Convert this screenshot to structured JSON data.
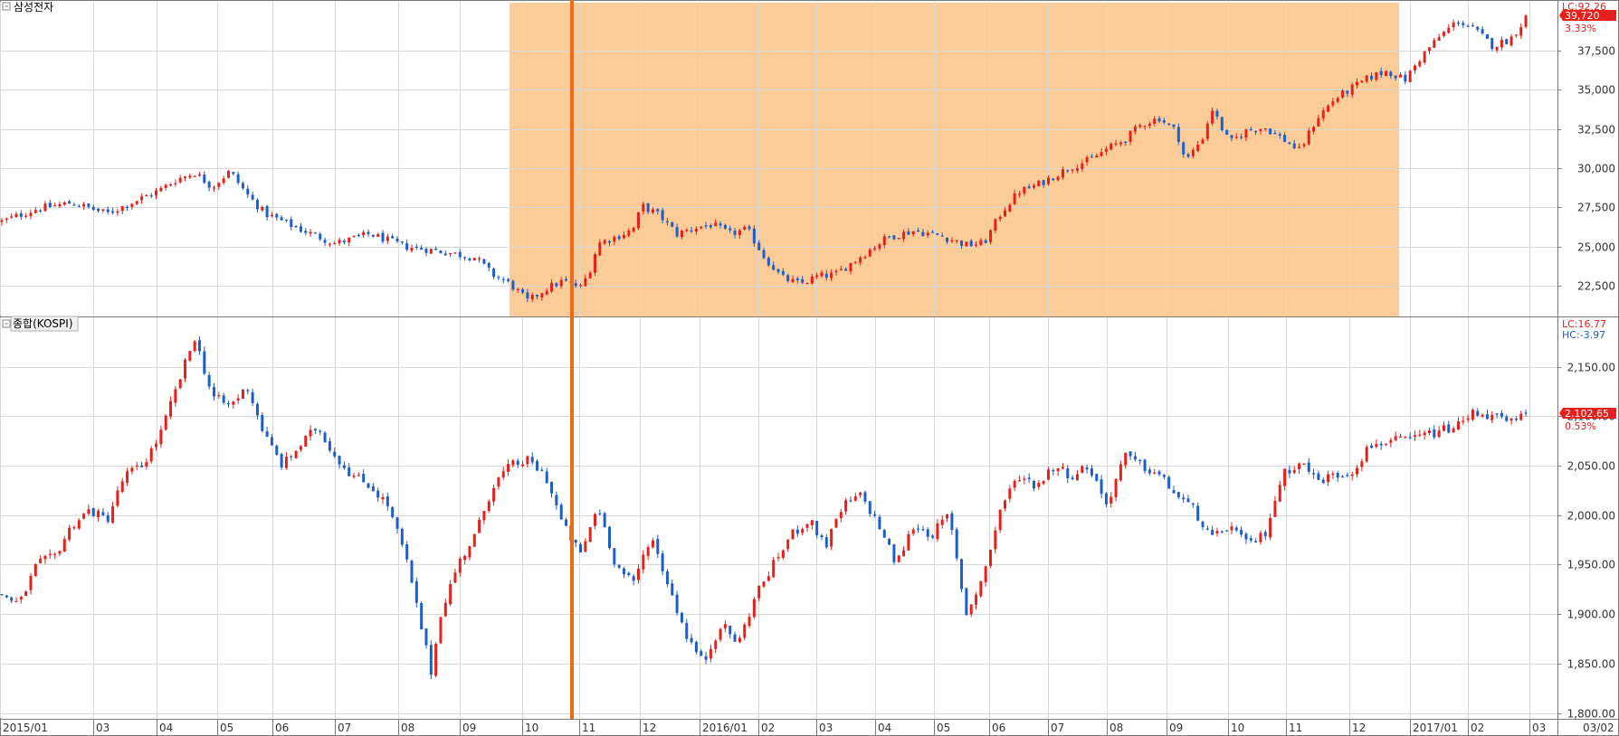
{
  "chart_data": [
    {
      "type": "candlestick",
      "title": "삼성전자",
      "indicator_label": "LC:92.26",
      "last_price_label": "39,720",
      "change_label": "3.33%",
      "y_ticks": [
        22500,
        25000,
        27500,
        30000,
        32500,
        35000,
        37500
      ],
      "y_tick_labels": [
        "22,500",
        "25,000",
        "27,500",
        "30,000",
        "32,500",
        "35,000",
        "37,500"
      ],
      "ylim": [
        20600,
        40600
      ],
      "last_value": 39720,
      "highlight_period": [
        "2015/11",
        "2016/12"
      ],
      "marker_date": "2015/10 end",
      "path_points": [
        [
          0,
          26600
        ],
        [
          4,
          27400
        ],
        [
          8,
          27800
        ],
        [
          12,
          27100
        ],
        [
          16,
          28100
        ],
        [
          18,
          28600
        ],
        [
          20,
          29300
        ],
        [
          22,
          29700
        ],
        [
          24,
          28800
        ],
        [
          26,
          29800
        ],
        [
          28,
          28300
        ],
        [
          30,
          27100
        ],
        [
          34,
          26100
        ],
        [
          38,
          25200
        ],
        [
          42,
          25800
        ],
        [
          46,
          25000
        ],
        [
          50,
          24700
        ],
        [
          54,
          24300
        ],
        [
          56,
          23200
        ],
        [
          58,
          22600
        ],
        [
          60,
          21500
        ],
        [
          62,
          22300
        ],
        [
          64,
          22800
        ],
        [
          66,
          22400
        ],
        [
          67,
          23400
        ],
        [
          68,
          25200
        ],
        [
          70,
          25600
        ],
        [
          72,
          26100
        ],
        [
          73,
          27600
        ],
        [
          75,
          27000
        ],
        [
          77,
          25800
        ],
        [
          79,
          26200
        ],
        [
          81,
          26400
        ],
        [
          83,
          25800
        ],
        [
          85,
          26100
        ],
        [
          87,
          24300
        ],
        [
          89,
          23000
        ],
        [
          91,
          22600
        ],
        [
          93,
          23100
        ],
        [
          95,
          23200
        ],
        [
          97,
          24000
        ],
        [
          99,
          24800
        ],
        [
          101,
          25600
        ],
        [
          104,
          26000
        ],
        [
          107,
          25700
        ],
        [
          110,
          25100
        ],
        [
          112,
          25200
        ],
        [
          114,
          27200
        ],
        [
          116,
          28500
        ],
        [
          118,
          28900
        ],
        [
          120,
          29500
        ],
        [
          122,
          30100
        ],
        [
          124,
          30500
        ],
        [
          126,
          31200
        ],
        [
          128,
          31800
        ],
        [
          130,
          32800
        ],
        [
          132,
          33200
        ],
        [
          134,
          32300
        ],
        [
          135,
          30400
        ],
        [
          137,
          32000
        ],
        [
          138,
          33800
        ],
        [
          140,
          31600
        ],
        [
          142,
          32400
        ],
        [
          144,
          32600
        ],
        [
          146,
          31900
        ],
        [
          148,
          31100
        ],
        [
          150,
          33200
        ],
        [
          152,
          34400
        ],
        [
          154,
          35100
        ],
        [
          156,
          35800
        ],
        [
          158,
          36200
        ],
        [
          160,
          35600
        ],
        [
          162,
          37200
        ],
        [
          164,
          38400
        ],
        [
          166,
          39400
        ],
        [
          168,
          38800
        ],
        [
          170,
          37800
        ],
        [
          172,
          38200
        ],
        [
          174,
          39720
        ]
      ]
    },
    {
      "type": "candlestick",
      "title": "종합(KOSPI)",
      "indicator_label_1": "LC:16.77",
      "indicator_label_2": "HC:-3.97",
      "last_price_label": "2,102.65",
      "change_label": "0.53%",
      "y_ticks": [
        1800,
        1850,
        1900,
        1950,
        2000,
        2050,
        2100,
        2150
      ],
      "y_tick_labels": [
        "1,800.00",
        "1,850.00",
        "1,900.00",
        "1,950.00",
        "2,000.00",
        "2,050.00",
        "2,100.00",
        "2,150.00"
      ],
      "ylim": [
        1795,
        2200
      ],
      "last_value": 2102.65,
      "path_points": [
        [
          0,
          1920
        ],
        [
          2,
          1910
        ],
        [
          4,
          1950
        ],
        [
          6,
          1958
        ],
        [
          8,
          1990
        ],
        [
          10,
          2005
        ],
        [
          12,
          1995
        ],
        [
          14,
          2040
        ],
        [
          16,
          2050
        ],
        [
          18,
          2080
        ],
        [
          20,
          2130
        ],
        [
          22,
          2180
        ],
        [
          24,
          2120
        ],
        [
          26,
          2110
        ],
        [
          28,
          2130
        ],
        [
          30,
          2080
        ],
        [
          32,
          2050
        ],
        [
          34,
          2070
        ],
        [
          36,
          2090
        ],
        [
          38,
          2060
        ],
        [
          40,
          2040
        ],
        [
          42,
          2030
        ],
        [
          44,
          2010
        ],
        [
          46,
          1960
        ],
        [
          48,
          1880
        ],
        [
          49,
          1840
        ],
        [
          50,
          1900
        ],
        [
          52,
          1950
        ],
        [
          54,
          1980
        ],
        [
          56,
          2030
        ],
        [
          58,
          2050
        ],
        [
          60,
          2055
        ],
        [
          62,
          2040
        ],
        [
          64,
          1990
        ],
        [
          66,
          1960
        ],
        [
          68,
          2010
        ],
        [
          70,
          1950
        ],
        [
          72,
          1930
        ],
        [
          74,
          1980
        ],
        [
          76,
          1930
        ],
        [
          78,
          1880
        ],
        [
          80,
          1850
        ],
        [
          82,
          1890
        ],
        [
          84,
          1870
        ],
        [
          86,
          1920
        ],
        [
          88,
          1950
        ],
        [
          90,
          1980
        ],
        [
          92,
          1995
        ],
        [
          94,
          1970
        ],
        [
          96,
          2010
        ],
        [
          98,
          2020
        ],
        [
          100,
          1990
        ],
        [
          102,
          1950
        ],
        [
          104,
          1990
        ],
        [
          106,
          1980
        ],
        [
          108,
          2000
        ],
        [
          110,
          1900
        ],
        [
          112,
          1940
        ],
        [
          114,
          2010
        ],
        [
          116,
          2040
        ],
        [
          118,
          2030
        ],
        [
          120,
          2050
        ],
        [
          122,
          2040
        ],
        [
          124,
          2050
        ],
        [
          126,
          2010
        ],
        [
          128,
          2060
        ],
        [
          130,
          2050
        ],
        [
          132,
          2040
        ],
        [
          134,
          2020
        ],
        [
          136,
          2005
        ],
        [
          138,
          1975
        ],
        [
          140,
          1990
        ],
        [
          142,
          1970
        ],
        [
          144,
          1980
        ],
        [
          146,
          2040
        ],
        [
          148,
          2055
        ],
        [
          150,
          2035
        ],
        [
          152,
          2040
        ],
        [
          154,
          2045
        ],
        [
          156,
          2070
        ],
        [
          158,
          2075
        ],
        [
          160,
          2075
        ],
        [
          162,
          2080
        ],
        [
          164,
          2085
        ],
        [
          166,
          2090
        ],
        [
          168,
          2105
        ],
        [
          170,
          2100
        ],
        [
          172,
          2093
        ],
        [
          174,
          2102.65
        ]
      ]
    }
  ],
  "x_axis": {
    "labels": [
      "2015/01",
      "03",
      "04",
      "05",
      "06",
      "07",
      "08",
      "09",
      "10",
      "11",
      "12",
      "2016/01",
      "02",
      "03",
      "04",
      "05",
      "06",
      "07",
      "08",
      "09",
      "10",
      "11",
      "12",
      "2017/01",
      "02",
      "03"
    ],
    "right_label": "03/02"
  },
  "colors": {
    "up": "#e8201c",
    "down": "#1d5ec8",
    "highlight": "#fbcb98",
    "marker": "#f06c14",
    "grid": "#d9d9d9",
    "axis": "#7a7a7a"
  }
}
